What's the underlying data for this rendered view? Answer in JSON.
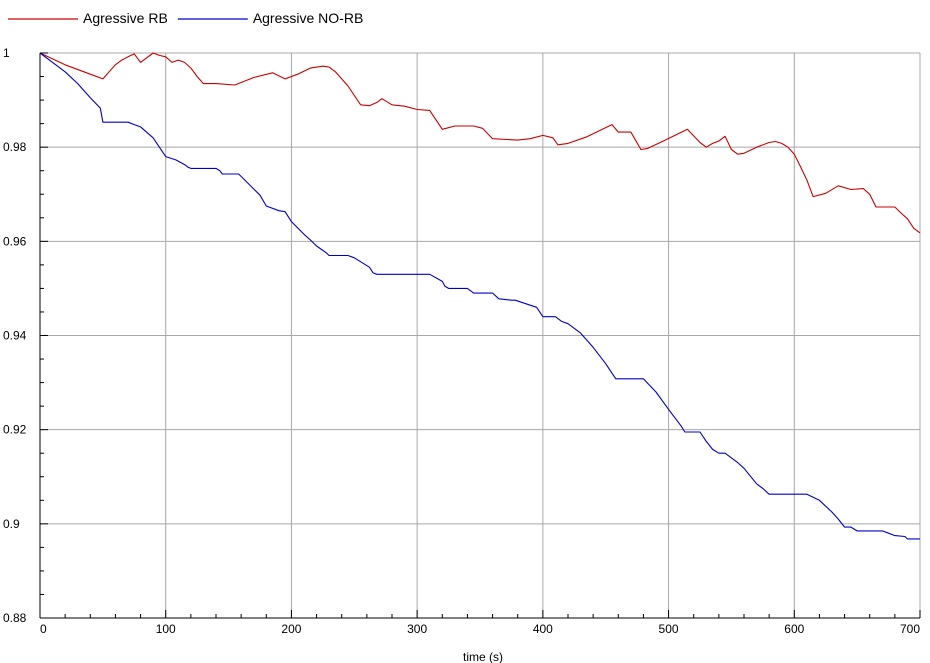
{
  "chart_data": {
    "type": "line",
    "title": "",
    "xlabel": "time (s)",
    "ylabel": "",
    "xlim": [
      0,
      700
    ],
    "ylim": [
      0.88,
      1.0
    ],
    "grid": true,
    "legend_position": "top-left",
    "x_ticks": [
      0,
      100,
      200,
      300,
      400,
      500,
      600,
      700
    ],
    "x_tick_labels": [
      "0",
      "100",
      "200",
      "300",
      "400",
      "500",
      "600",
      "700"
    ],
    "y_ticks": [
      0.88,
      0.9,
      0.92,
      0.94,
      0.96,
      0.98,
      1.0
    ],
    "y_tick_labels": [
      "0.88",
      "0.9",
      "0.92",
      "0.94",
      "0.96",
      "0.98",
      "1"
    ],
    "series": [
      {
        "name": "Agressive RB",
        "color": "#cc0000",
        "x": [
          0,
          20,
          40,
          50,
          55,
          60,
          65,
          70,
          75,
          80,
          90,
          95,
          100,
          105,
          110,
          115,
          120,
          125,
          130,
          135,
          140,
          155,
          170,
          185,
          195,
          205,
          215,
          225,
          230,
          235,
          245,
          255,
          262,
          268,
          272,
          280,
          290,
          300,
          310,
          320,
          330,
          345,
          352,
          360,
          380,
          390,
          400,
          408,
          412,
          420,
          435,
          455,
          460,
          470,
          478,
          483,
          495,
          505,
          515,
          525,
          530,
          535,
          540,
          545,
          550,
          555,
          560,
          570,
          580,
          585,
          590,
          595,
          600,
          605,
          610,
          615,
          625,
          635,
          645,
          655,
          660,
          665,
          680,
          685,
          690,
          695,
          700
        ],
        "y": [
          1.0,
          0.9975,
          0.9955,
          0.9945,
          0.996,
          0.9975,
          0.9985,
          0.9992,
          0.9998,
          0.998,
          1.0,
          0.9995,
          0.9992,
          0.998,
          0.9985,
          0.998,
          0.9968,
          0.995,
          0.9935,
          0.9935,
          0.9935,
          0.9932,
          0.9948,
          0.9958,
          0.9945,
          0.9955,
          0.9968,
          0.9972,
          0.997,
          0.996,
          0.993,
          0.989,
          0.9888,
          0.9895,
          0.9903,
          0.989,
          0.9887,
          0.988,
          0.9878,
          0.9838,
          0.9845,
          0.9845,
          0.984,
          0.9818,
          0.9815,
          0.9818,
          0.9825,
          0.982,
          0.9805,
          0.9808,
          0.9822,
          0.9848,
          0.9832,
          0.9832,
          0.9795,
          0.9797,
          0.9812,
          0.9825,
          0.9838,
          0.981,
          0.98,
          0.9808,
          0.9813,
          0.9823,
          0.9795,
          0.9785,
          0.9787,
          0.98,
          0.981,
          0.9812,
          0.9808,
          0.98,
          0.9785,
          0.9758,
          0.973,
          0.9695,
          0.9702,
          0.9718,
          0.971,
          0.9712,
          0.97,
          0.9673,
          0.9673,
          0.966,
          0.9648,
          0.9628,
          0.9618
        ]
      },
      {
        "name": "Agressive NO-RB",
        "color": "#0000cc",
        "x": [
          0,
          10,
          20,
          30,
          40,
          48,
          50,
          70,
          75,
          80,
          90,
          95,
          100,
          108,
          115,
          118,
          120,
          140,
          143,
          145,
          158,
          160,
          175,
          180,
          190,
          195,
          200,
          210,
          215,
          220,
          228,
          230,
          245,
          250,
          262,
          265,
          268,
          270,
          300,
          310,
          320,
          322,
          325,
          340,
          345,
          360,
          365,
          375,
          378,
          395,
          400,
          410,
          415,
          420,
          430,
          440,
          450,
          455,
          458,
          480,
          490,
          500,
          510,
          513,
          515,
          525,
          530,
          535,
          540,
          545,
          555,
          560,
          570,
          575,
          580,
          600,
          610,
          620,
          630,
          635,
          640,
          645,
          650,
          670,
          675,
          680,
          688,
          690,
          700
        ],
        "y": [
          1.0,
          0.998,
          0.996,
          0.9935,
          0.9905,
          0.9883,
          0.9853,
          0.9853,
          0.9848,
          0.9843,
          0.982,
          0.98,
          0.978,
          0.9773,
          0.9763,
          0.9757,
          0.9755,
          0.9755,
          0.975,
          0.9743,
          0.9743,
          0.9738,
          0.9698,
          0.9675,
          0.9665,
          0.9663,
          0.9642,
          0.9615,
          0.9603,
          0.959,
          0.9575,
          0.957,
          0.957,
          0.9565,
          0.9545,
          0.9533,
          0.953,
          0.953,
          0.953,
          0.953,
          0.9515,
          0.9505,
          0.95,
          0.95,
          0.949,
          0.949,
          0.9478,
          0.9475,
          0.9475,
          0.946,
          0.944,
          0.944,
          0.943,
          0.9425,
          0.9405,
          0.9375,
          0.934,
          0.932,
          0.9308,
          0.9308,
          0.928,
          0.9243,
          0.9208,
          0.9195,
          0.9195,
          0.9195,
          0.9175,
          0.9158,
          0.915,
          0.915,
          0.913,
          0.9118,
          0.9085,
          0.9075,
          0.9063,
          0.9063,
          0.9063,
          0.905,
          0.9025,
          0.901,
          0.8993,
          0.8993,
          0.8985,
          0.8985,
          0.898,
          0.8975,
          0.8973,
          0.8968,
          0.8968
        ]
      }
    ]
  }
}
